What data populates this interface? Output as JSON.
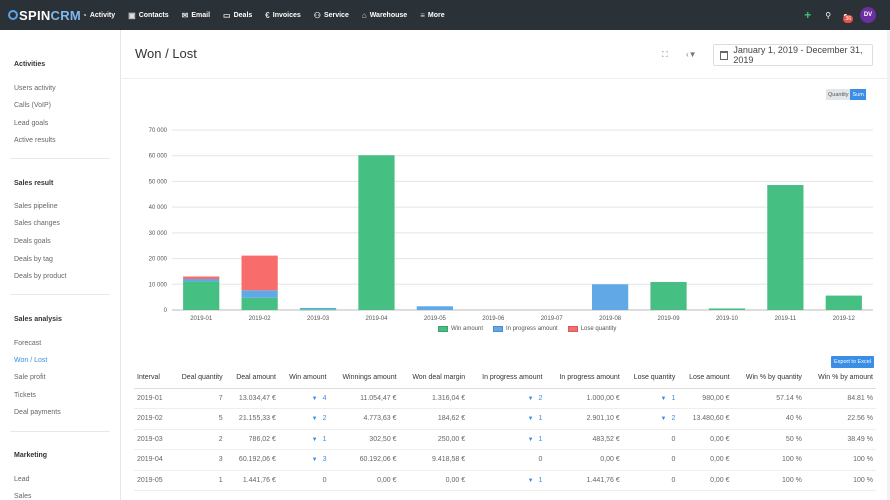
{
  "topbar": {
    "logo_prefix": "SPIN",
    "logo_suffix": "CRM",
    "nav": [
      {
        "label": "Activity",
        "icon": "dashboard-icon",
        "glyph": "◔"
      },
      {
        "label": "Contacts",
        "icon": "contacts-icon",
        "glyph": "▣"
      },
      {
        "label": "Email",
        "icon": "envelope-icon",
        "glyph": "✉"
      },
      {
        "label": "Deals",
        "icon": "deals-icon",
        "glyph": "▭"
      },
      {
        "label": "Invoices",
        "icon": "euro-icon",
        "glyph": "€"
      },
      {
        "label": "Service",
        "icon": "service-icon",
        "glyph": "⚇"
      },
      {
        "label": "Warehouse",
        "icon": "warehouse-icon",
        "glyph": "⌂"
      },
      {
        "label": "More",
        "icon": "menu-icon",
        "glyph": "≡"
      }
    ],
    "notification_count": "36",
    "avatar_initials": "DV"
  },
  "sidebar": {
    "sections": [
      {
        "title": "Activities",
        "items": [
          "Users activity",
          "Calls (VoIP)",
          "Lead goals",
          "Active results"
        ]
      },
      {
        "title": "Sales result",
        "items": [
          "Sales pipeline",
          "Sales changes",
          "Deals goals",
          "Deals by tag",
          "Deals by product"
        ]
      },
      {
        "title": "Sales analysis",
        "items": [
          "Forecast",
          "Won / Lost",
          "Sale profit",
          "Tickets",
          "Deal payments"
        ]
      },
      {
        "title": "Marketing",
        "items": [
          "Lead",
          "Sales"
        ]
      }
    ],
    "active_item": "Won / Lost"
  },
  "header": {
    "title": "Won / Lost",
    "date_range": "January 1, 2019 - December 31, 2019"
  },
  "toggle": {
    "quantity_label": "Quantity",
    "sum_label": "Sum",
    "selected": "Sum"
  },
  "chart_data": {
    "type": "bar",
    "stacked": true,
    "categories": [
      "2019-01",
      "2019-02",
      "2019-03",
      "2019-04",
      "2019-05",
      "2019-06",
      "2019-07",
      "2019-08",
      "2019-09",
      "2019-10",
      "2019-11",
      "2019-12"
    ],
    "series": [
      {
        "name": "Win amount",
        "color": "#46bf82",
        "values": [
          11054.47,
          4773.63,
          302.5,
          60192.06,
          0,
          0,
          0,
          0,
          10900,
          600,
          48600,
          5600
        ]
      },
      {
        "name": "In progress amount",
        "color": "#60a8e6",
        "values": [
          1000,
          2901.1,
          483.52,
          0,
          1441.76,
          0,
          0,
          10000,
          0,
          0,
          0,
          0
        ]
      },
      {
        "name": "Lose quantity",
        "color": "#f86c6b",
        "values": [
          980,
          13480.6,
          0,
          0,
          0,
          0,
          0,
          0,
          0,
          0,
          0,
          0
        ]
      }
    ],
    "ylim": [
      0,
      70000
    ],
    "yticks": [
      "0",
      "10 000",
      "20 000",
      "30 000",
      "40 000",
      "50 000",
      "60 000",
      "70 000"
    ],
    "grid": true,
    "legend": "bottom"
  },
  "export_label": "Export to Excel",
  "table": {
    "headers": [
      "Interval",
      "Deal quantity",
      "Deal amount",
      "Win amount",
      "Winnings amount",
      "Won deal margin",
      "In progress amount",
      "In progress amount",
      "Lose quantity",
      "Lose amount",
      "Win % by quantity",
      "Win % by amount"
    ],
    "rows": [
      [
        "2019-01",
        "7",
        "13.034,47 €",
        "4",
        "11.054,47 €",
        "1.316,04 €",
        "2",
        "1.000,00 €",
        "1",
        "980,00 €",
        "57.14 %",
        "84.81 %"
      ],
      [
        "2019-02",
        "5",
        "21.155,33 €",
        "2",
        "4.773,63 €",
        "184,62 €",
        "1",
        "2.901,10 €",
        "2",
        "13.480,60 €",
        "40 %",
        "22.56 %"
      ],
      [
        "2019-03",
        "2",
        "786,02 €",
        "1",
        "302,50 €",
        "250,00 €",
        "1",
        "483,52 €",
        "0",
        "0,00 €",
        "50 %",
        "38.49 %"
      ],
      [
        "2019-04",
        "3",
        "60.192,06 €",
        "3",
        "60.192,06 €",
        "9.418,58 €",
        "0",
        "0,00 €",
        "0",
        "0,00 €",
        "100 %",
        "100 %"
      ],
      [
        "2019-05",
        "1",
        "1.441,76 €",
        "0",
        "0,00 €",
        "0,00 €",
        "1",
        "1.441,76 €",
        "0",
        "0,00 €",
        "100 %",
        "100 %"
      ]
    ],
    "linked_columns": [
      3,
      6,
      8
    ]
  }
}
